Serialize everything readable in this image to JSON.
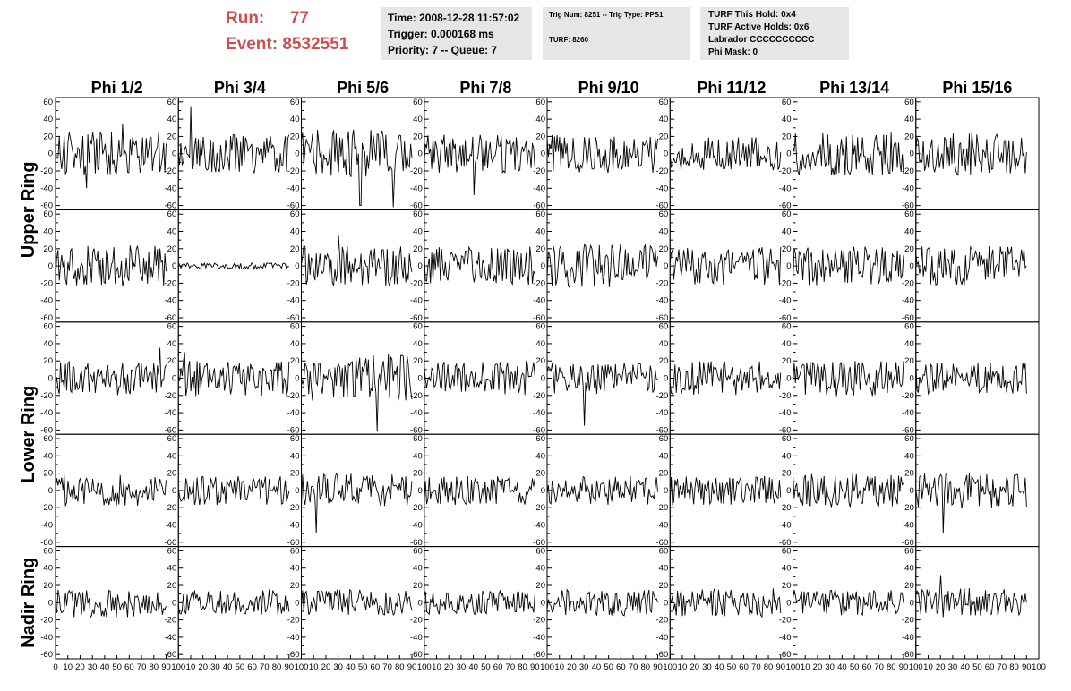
{
  "header": {
    "run_label": "Run:",
    "run_value": "77",
    "event_label": "Event:",
    "event_value": "8532551",
    "accent_color": "#cc5050",
    "time_box": {
      "time": "Time: 2008-12-28 11:57:02",
      "trigger": "Trigger: 0.000168 ms",
      "priority": "Priority: 7 -- Queue: 7"
    },
    "trig_box": {
      "trig": "Trig Num: 8251 -- Trig Type: PPS1",
      "turf": "TURF: 8260"
    },
    "turf_box": {
      "hold": "TURF This Hold: 0x4",
      "active": "TURF Active Holds: 0x6",
      "labrador": "Labrador CCCCCCCCCC",
      "phimask": "Phi Mask: 0"
    },
    "box_color": "#e6e6e6"
  },
  "chart_data": {
    "type": "line",
    "columns": [
      "Phi 1/2",
      "Phi 3/4",
      "Phi 5/6",
      "Phi 7/8",
      "Phi 9/10",
      "Phi 11/12",
      "Phi 13/14",
      "Phi 15/16"
    ],
    "rows": [
      "Upper Ring",
      "Upper Ring",
      "Lower Ring",
      "Lower Ring",
      "Nadir Ring"
    ],
    "row_groups": [
      {
        "label": "Upper Ring",
        "rows": [
          0,
          1
        ]
      },
      {
        "label": "Lower Ring",
        "rows": [
          2,
          3
        ]
      },
      {
        "label": "Nadir Ring",
        "rows": [
          4,
          4
        ]
      }
    ],
    "x_range": [
      0,
      100
    ],
    "y_range": [
      -65,
      65
    ],
    "y_ticks": [
      -60,
      -40,
      -20,
      0,
      20,
      40,
      60
    ],
    "x_ticks": [
      0,
      10,
      20,
      30,
      40,
      50,
      60,
      70,
      80,
      90,
      100
    ],
    "samples_per_trace": 90,
    "line_color": "#000000",
    "grid": false,
    "amplitudes": [
      [
        18,
        16,
        20,
        16,
        16,
        14,
        18,
        18
      ],
      [
        17,
        2.5,
        17,
        16,
        18,
        16,
        16,
        17
      ],
      [
        14,
        15,
        20,
        14,
        13,
        14,
        15,
        13
      ],
      [
        13,
        12,
        14,
        12,
        12,
        12,
        14,
        15
      ],
      [
        12,
        11,
        11,
        10,
        11,
        12,
        11,
        12
      ]
    ],
    "spikes": [
      [
        {
          "x": 55,
          "y": 35
        },
        {
          "x": 25,
          "y": -40
        }
      ],
      [
        {
          "x": 10,
          "y": 55
        }
      ],
      [
        {
          "x": 48,
          "y": -60
        },
        {
          "x": 75,
          "y": -62
        }
      ],
      [
        {
          "x": 40,
          "y": -48
        }
      ],
      [],
      [],
      [],
      [],
      [],
      [],
      [
        {
          "x": 30,
          "y": 35
        }
      ],
      [],
      [],
      [],
      [],
      [],
      [
        {
          "x": 85,
          "y": 35
        }
      ],
      [
        {
          "x": 5,
          "y": 30
        }
      ],
      [
        {
          "x": 62,
          "y": -62
        }
      ],
      [],
      [
        {
          "x": 30,
          "y": -55
        }
      ],
      [],
      [],
      [],
      [],
      [],
      [
        {
          "x": 12,
          "y": -50
        }
      ],
      [],
      [],
      [],
      [],
      [
        {
          "x": 22,
          "y": -50
        }
      ],
      [],
      [],
      [],
      [],
      [],
      [],
      [],
      [
        {
          "x": 20,
          "y": 32
        }
      ]
    ]
  }
}
